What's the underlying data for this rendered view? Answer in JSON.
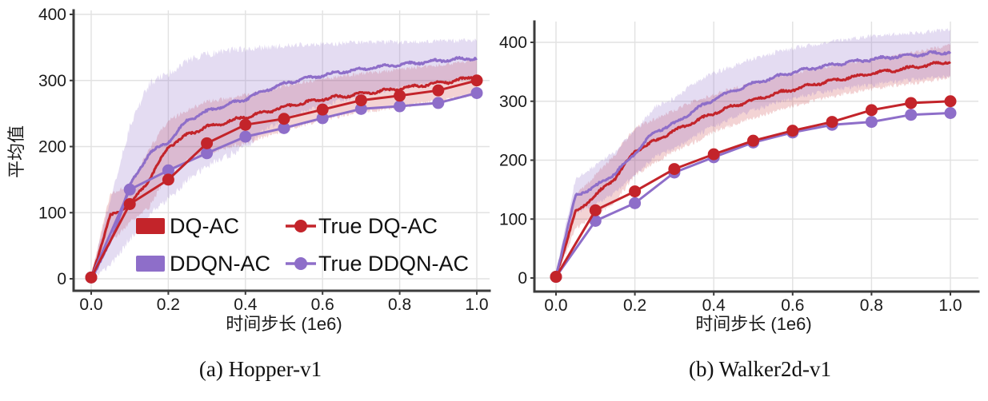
{
  "figure": {
    "background": "#ffffff"
  },
  "colors": {
    "red": "#c3242a",
    "purple": "#8e6ec9",
    "band_red": "#c3242a",
    "band_purple": "#8e6ec9",
    "band_red_opacity": 0.2,
    "band_purple_opacity": 0.24,
    "grid": "#e2e2e2",
    "spine": "#3c3c3c",
    "text": "#1a1a1a"
  },
  "chart_data": [
    {
      "type": "line",
      "id": "hopper",
      "caption": "(a) Hopper-v1",
      "xlabel": "时间步长 (1e6)",
      "ylabel": "平均值",
      "xlim": [
        0.0,
        1.0
      ],
      "ylim": [
        0,
        400
      ],
      "xtick_values": [
        0.0,
        0.2,
        0.4,
        0.6,
        0.8,
        1.0
      ],
      "xtick_labels": [
        "0.0",
        "0.2",
        "0.4",
        "0.6",
        "0.8",
        "1.0"
      ],
      "ytick_values": [
        0,
        100,
        200,
        300,
        400
      ],
      "ytick_labels": [
        "0",
        "100",
        "200",
        "300",
        "400"
      ],
      "grid": true,
      "legend": {
        "position": "lower center inside",
        "items": [
          {
            "label": "DQ-AC",
            "swatch": "patch",
            "color_key": "red"
          },
          {
            "label": "DDQN-AC",
            "swatch": "patch",
            "color_key": "purple"
          },
          {
            "label": "True DQ-AC",
            "swatch": "line",
            "color_key": "red"
          },
          {
            "label": "True DDQN-AC",
            "swatch": "line",
            "color_key": "purple"
          }
        ]
      },
      "series": [
        {
          "name": "DQ-AC",
          "kind": "mean_band",
          "color_key": "red",
          "x_start": 0,
          "x_step": 0.05,
          "mean": [
            2,
            95,
            112,
            150,
            200,
            218,
            230,
            237,
            245,
            252,
            260,
            266,
            272,
            276,
            280,
            284,
            288,
            292,
            296,
            300,
            307
          ],
          "lower": [
            0,
            55,
            85,
            108,
            160,
            178,
            190,
            198,
            205,
            215,
            225,
            232,
            240,
            246,
            252,
            256,
            260,
            265,
            270,
            274,
            280
          ],
          "upper": [
            6,
            130,
            140,
            195,
            240,
            255,
            268,
            272,
            278,
            285,
            292,
            297,
            302,
            306,
            310,
            313,
            316,
            320,
            323,
            327,
            332
          ]
        },
        {
          "name": "DDQN-AC",
          "kind": "mean_band",
          "color_key": "purple",
          "x_start": 0,
          "x_step": 0.05,
          "mean": [
            2,
            55,
            140,
            190,
            207,
            240,
            253,
            263,
            272,
            285,
            295,
            302,
            308,
            313,
            317,
            321,
            324,
            327,
            330,
            332,
            334
          ],
          "lower": [
            0,
            20,
            60,
            95,
            120,
            150,
            170,
            185,
            200,
            225,
            240,
            252,
            262,
            270,
            277,
            283,
            288,
            293,
            297,
            300,
            303
          ],
          "upper": [
            6,
            120,
            230,
            295,
            310,
            330,
            340,
            345,
            348,
            350,
            352,
            354,
            355,
            356,
            357,
            358,
            358,
            359,
            360,
            360,
            361
          ]
        },
        {
          "name": "True DDQN-AC",
          "kind": "marker_line",
          "color_key": "purple",
          "x_start": 0,
          "x_step": 0.1,
          "values": [
            2,
            135,
            164,
            190,
            215,
            228,
            243,
            257,
            261,
            266,
            281
          ]
        },
        {
          "name": "True DQ-AC",
          "kind": "marker_line",
          "color_key": "red",
          "x_start": 0,
          "x_step": 0.1,
          "values": [
            2,
            113,
            150,
            205,
            233,
            242,
            256,
            270,
            277,
            285,
            300
          ]
        }
      ]
    },
    {
      "type": "line",
      "id": "walker2d",
      "caption": "(b) Walker2d-v1",
      "xlabel": "时间步长 (1e6)",
      "ylabel": "",
      "xlim": [
        0.0,
        1.0
      ],
      "ylim": [
        0,
        400
      ],
      "xtick_values": [
        0.0,
        0.2,
        0.4,
        0.6,
        0.8,
        1.0
      ],
      "xtick_labels": [
        "0.0",
        "0.2",
        "0.4",
        "0.6",
        "0.8",
        "1.0"
      ],
      "ytick_values": [
        0,
        100,
        200,
        300,
        400
      ],
      "ytick_labels": [
        "0",
        "100",
        "200",
        "300",
        "400"
      ],
      "grid": true,
      "legend": null,
      "series": [
        {
          "name": "DQ-AC",
          "kind": "mean_band",
          "color_key": "red",
          "x_start": 0,
          "x_step": 0.05,
          "mean": [
            5,
            112,
            140,
            170,
            215,
            232,
            250,
            265,
            280,
            292,
            302,
            312,
            320,
            328,
            335,
            341,
            347,
            352,
            357,
            362,
            368
          ],
          "lower": [
            0,
            85,
            105,
            130,
            175,
            195,
            215,
            230,
            248,
            260,
            272,
            282,
            292,
            300,
            308,
            315,
            320,
            326,
            330,
            335,
            340
          ],
          "upper": [
            10,
            140,
            175,
            210,
            255,
            270,
            285,
            300,
            312,
            322,
            330,
            340,
            347,
            354,
            360,
            366,
            372,
            377,
            382,
            388,
            396
          ]
        },
        {
          "name": "DDQN-AC",
          "kind": "mean_band",
          "color_key": "purple",
          "x_start": 0,
          "x_step": 0.05,
          "mean": [
            5,
            140,
            155,
            178,
            212,
            248,
            262,
            285,
            303,
            318,
            330,
            340,
            349,
            356,
            362,
            367,
            371,
            375,
            378,
            381,
            384
          ],
          "lower": [
            0,
            110,
            125,
            145,
            175,
            205,
            220,
            240,
            258,
            272,
            285,
            295,
            305,
            312,
            318,
            324,
            328,
            332,
            336,
            339,
            342
          ],
          "upper": [
            10,
            170,
            190,
            215,
            250,
            290,
            305,
            330,
            348,
            360,
            372,
            382,
            390,
            396,
            402,
            406,
            410,
            413,
            416,
            418,
            421
          ]
        },
        {
          "name": "True DDQN-AC",
          "kind": "marker_line",
          "color_key": "purple",
          "x_start": 0,
          "x_step": 0.1,
          "values": [
            2,
            97,
            127,
            179,
            205,
            230,
            247,
            260,
            265,
            277,
            280
          ]
        },
        {
          "name": "True DQ-AC",
          "kind": "marker_line",
          "color_key": "red",
          "x_start": 0,
          "x_step": 0.1,
          "values": [
            2,
            115,
            147,
            185,
            210,
            233,
            250,
            265,
            285,
            297,
            300
          ]
        }
      ]
    }
  ]
}
